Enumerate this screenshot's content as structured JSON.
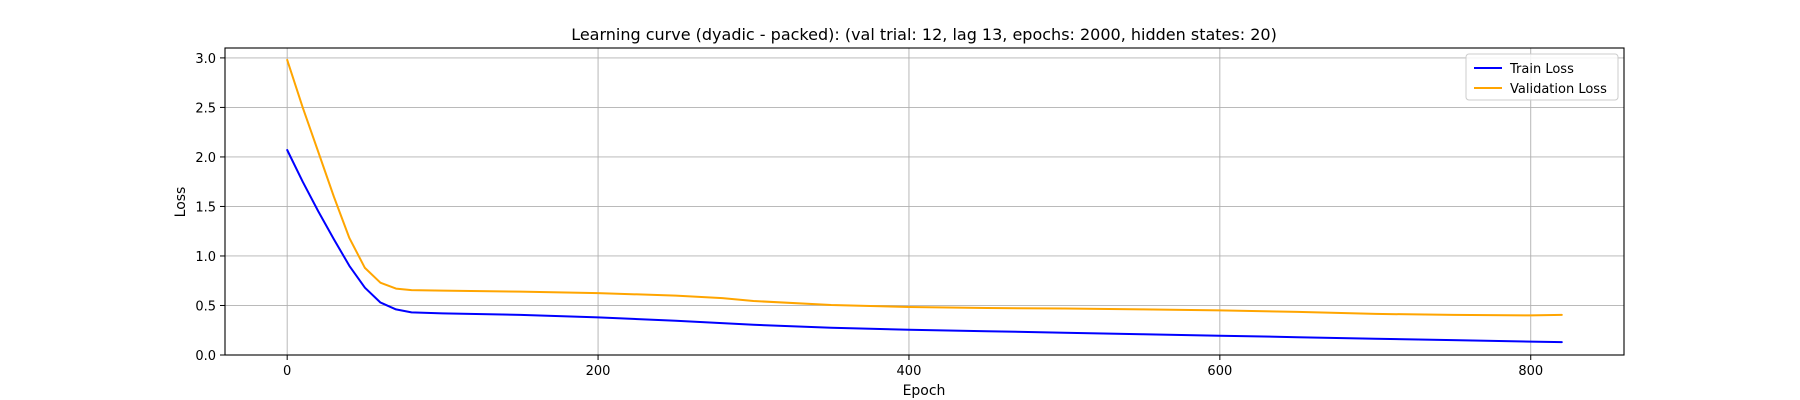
{
  "chart_data": {
    "type": "line",
    "title": "Learning curve (dyadic - packed): (val trial: 12, lag 13, epochs: 2000, hidden states: 20)",
    "xlabel": "Epoch",
    "ylabel": "Loss",
    "xlim": [
      -40,
      860
    ],
    "ylim": [
      0,
      3.1
    ],
    "xticks": [
      0,
      200,
      400,
      600,
      800
    ],
    "yticks": [
      0.0,
      0.5,
      1.0,
      1.5,
      2.0,
      2.5,
      3.0
    ],
    "xtick_labels": [
      "0",
      "200",
      "400",
      "600",
      "800"
    ],
    "ytick_labels": [
      "0.0",
      "0.5",
      "1.0",
      "1.5",
      "2.0",
      "2.5",
      "3.0"
    ],
    "grid": true,
    "legend": "top-right",
    "series": [
      {
        "name": "Train Loss",
        "color": "#0000ff",
        "x": [
          0,
          10,
          20,
          30,
          40,
          50,
          60,
          70,
          80,
          100,
          150,
          200,
          250,
          300,
          350,
          400,
          450,
          500,
          550,
          600,
          650,
          700,
          750,
          800,
          820
        ],
        "y": [
          2.07,
          1.75,
          1.45,
          1.17,
          0.9,
          0.68,
          0.53,
          0.46,
          0.43,
          0.42,
          0.405,
          0.38,
          0.345,
          0.305,
          0.275,
          0.255,
          0.24,
          0.225,
          0.21,
          0.195,
          0.18,
          0.165,
          0.15,
          0.135,
          0.13
        ]
      },
      {
        "name": "Validation Loss",
        "color": "#ffa500",
        "x": [
          0,
          10,
          20,
          30,
          40,
          50,
          60,
          70,
          80,
          100,
          150,
          200,
          250,
          280,
          300,
          350,
          400,
          450,
          500,
          550,
          600,
          650,
          700,
          750,
          800,
          820
        ],
        "y": [
          2.98,
          2.5,
          2.05,
          1.6,
          1.18,
          0.88,
          0.73,
          0.67,
          0.655,
          0.65,
          0.64,
          0.625,
          0.6,
          0.575,
          0.545,
          0.505,
          0.485,
          0.475,
          0.47,
          0.46,
          0.45,
          0.435,
          0.415,
          0.405,
          0.4,
          0.405
        ]
      }
    ]
  }
}
